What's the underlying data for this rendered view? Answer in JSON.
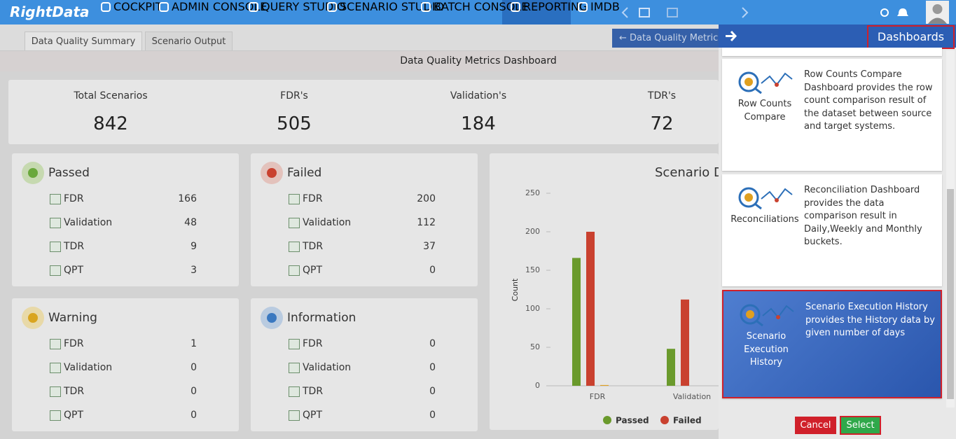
{
  "nav": {
    "logo": "RightData",
    "items": [
      "COCKPIT",
      "ADMIN CONSOLE",
      "QUERY STUDIO",
      "SCENARIO STUDIO",
      "BATCH CONSOLE",
      "REPORTING",
      "IMDB"
    ]
  },
  "tabs": [
    "Data Quality Summary",
    "Scenario Output"
  ],
  "back_button": "Data Quality Metric",
  "dashboard_title": "Data Quality Metrics Dashboard",
  "summary": [
    {
      "label": "Total Scenarios",
      "value": 842
    },
    {
      "label": "FDR's",
      "value": 505
    },
    {
      "label": "Validation's",
      "value": 184
    },
    {
      "label": "TDR's",
      "value": 72
    }
  ],
  "cards": [
    {
      "title": "Passed",
      "rows": [
        {
          "label": "FDR",
          "value": 166
        },
        {
          "label": "Validation",
          "value": 48
        },
        {
          "label": "TDR",
          "value": 9
        },
        {
          "label": "QPT",
          "value": 3
        }
      ]
    },
    {
      "title": "Failed",
      "rows": [
        {
          "label": "FDR",
          "value": 200
        },
        {
          "label": "Validation",
          "value": 112
        },
        {
          "label": "TDR",
          "value": 37
        },
        {
          "label": "QPT",
          "value": 0
        }
      ]
    },
    {
      "title": "Warning",
      "rows": [
        {
          "label": "FDR",
          "value": 1
        },
        {
          "label": "Validation",
          "value": 0
        },
        {
          "label": "TDR",
          "value": 0
        },
        {
          "label": "QPT",
          "value": 0
        }
      ]
    },
    {
      "title": "Information",
      "rows": [
        {
          "label": "FDR",
          "value": 0
        },
        {
          "label": "Validation",
          "value": 0
        },
        {
          "label": "TDR",
          "value": 0
        },
        {
          "label": "QPT",
          "value": 0
        }
      ]
    }
  ],
  "chart_data": {
    "type": "bar",
    "title": "Scenario D",
    "y_label": "Count",
    "categories": [
      "FDR",
      "Validation"
    ],
    "series": [
      {
        "name": "Passed",
        "color": "#6a9a2c",
        "values": [
          166,
          48
        ]
      },
      {
        "name": "Failed",
        "color": "#c9412f",
        "values": [
          200,
          112
        ]
      },
      {
        "color": "#e0a020",
        "values": [
          1,
          0
        ]
      },
      {
        "color": "#2f72c4",
        "values": [
          0,
          0
        ]
      }
    ],
    "ylim": [
      0,
      250
    ],
    "yticks": [
      0,
      50,
      100,
      150,
      200,
      250
    ]
  },
  "panel": {
    "title": "Dashboards",
    "items": [
      {
        "name": "Row Counts Compare",
        "description": "Row Counts Compare Dashboard provides the row count comparison result of the dataset between source and target systems."
      },
      {
        "name": "Reconciliations",
        "description": "Reconciliation Dashboard provides the data comparison result in Daily,Weekly and Monthly buckets."
      },
      {
        "name": "Scenario Execution History",
        "description": "Scenario Execution History provides the History data by given number of days"
      }
    ],
    "cancel": "Cancel",
    "select": "Select"
  }
}
